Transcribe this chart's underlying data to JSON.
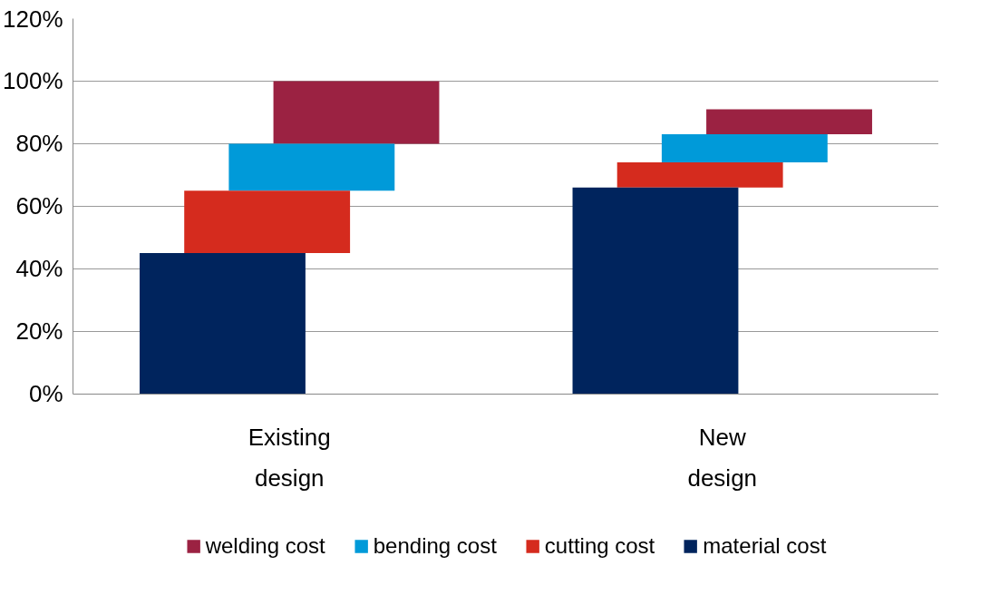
{
  "chart_data": {
    "type": "bar",
    "categories": [
      "Existing design",
      "New design"
    ],
    "series": [
      {
        "name": "welding cost",
        "color": "#9b2242",
        "values": [
          20,
          8
        ],
        "base": [
          80,
          83
        ]
      },
      {
        "name": "bending cost",
        "color": "#009ad9",
        "values": [
          15,
          9
        ],
        "base": [
          65,
          74
        ]
      },
      {
        "name": "cutting cost",
        "color": "#d52b1e",
        "values": [
          20,
          8
        ],
        "base": [
          45,
          66
        ]
      },
      {
        "name": "material cost",
        "color": "#00245d",
        "values": [
          45,
          66
        ],
        "base": [
          0,
          0
        ]
      }
    ],
    "ylim": [
      0,
      120
    ],
    "yticks": [
      {
        "value": 0,
        "label": "0%"
      },
      {
        "value": 20,
        "label": "20%"
      },
      {
        "value": 40,
        "label": "40%"
      },
      {
        "value": 60,
        "label": "60%"
      },
      {
        "value": 80,
        "label": "80%"
      },
      {
        "value": 100,
        "label": "100%"
      },
      {
        "value": 120,
        "label": "120%"
      }
    ],
    "grid": "y",
    "legend": "bottom"
  }
}
